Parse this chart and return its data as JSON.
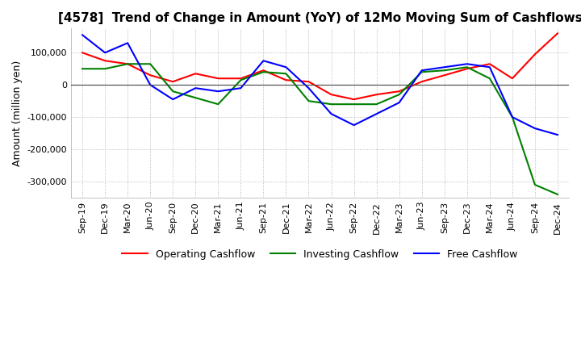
{
  "title": "[4578]  Trend of Change in Amount (YoY) of 12Mo Moving Sum of Cashflows",
  "ylabel": "Amount (million yen)",
  "ylim": [
    -350000,
    175000
  ],
  "yticks": [
    -300000,
    -200000,
    -100000,
    0,
    100000
  ],
  "background_color": "#ffffff",
  "grid_color": "#aaaaaa",
  "dates": [
    "Sep-19",
    "Dec-19",
    "Mar-20",
    "Jun-20",
    "Sep-20",
    "Dec-20",
    "Mar-21",
    "Jun-21",
    "Sep-21",
    "Dec-21",
    "Mar-22",
    "Jun-22",
    "Sep-22",
    "Dec-22",
    "Mar-23",
    "Jun-23",
    "Sep-23",
    "Dec-23",
    "Mar-24",
    "Jun-24",
    "Sep-24",
    "Dec-24"
  ],
  "operating": [
    100000,
    75000,
    65000,
    30000,
    10000,
    35000,
    20000,
    20000,
    45000,
    15000,
    10000,
    -30000,
    -45000,
    -30000,
    -20000,
    10000,
    30000,
    50000,
    65000,
    20000,
    95000,
    160000
  ],
  "investing": [
    50000,
    50000,
    65000,
    65000,
    -20000,
    -40000,
    -60000,
    15000,
    40000,
    35000,
    -50000,
    -60000,
    -60000,
    -60000,
    -30000,
    40000,
    45000,
    55000,
    20000,
    -100000,
    -310000,
    -340000
  ],
  "free": [
    155000,
    100000,
    130000,
    0,
    -45000,
    -10000,
    -20000,
    -10000,
    75000,
    55000,
    -10000,
    -90000,
    -125000,
    -90000,
    -55000,
    45000,
    55000,
    65000,
    55000,
    -100000,
    -135000,
    -155000
  ],
  "op_color": "#ff0000",
  "inv_color": "#008000",
  "free_color": "#0000ff",
  "legend_labels": [
    "Operating Cashflow",
    "Investing Cashflow",
    "Free Cashflow"
  ],
  "title_fontsize": 11,
  "tick_fontsize": 8,
  "ylabel_fontsize": 9
}
